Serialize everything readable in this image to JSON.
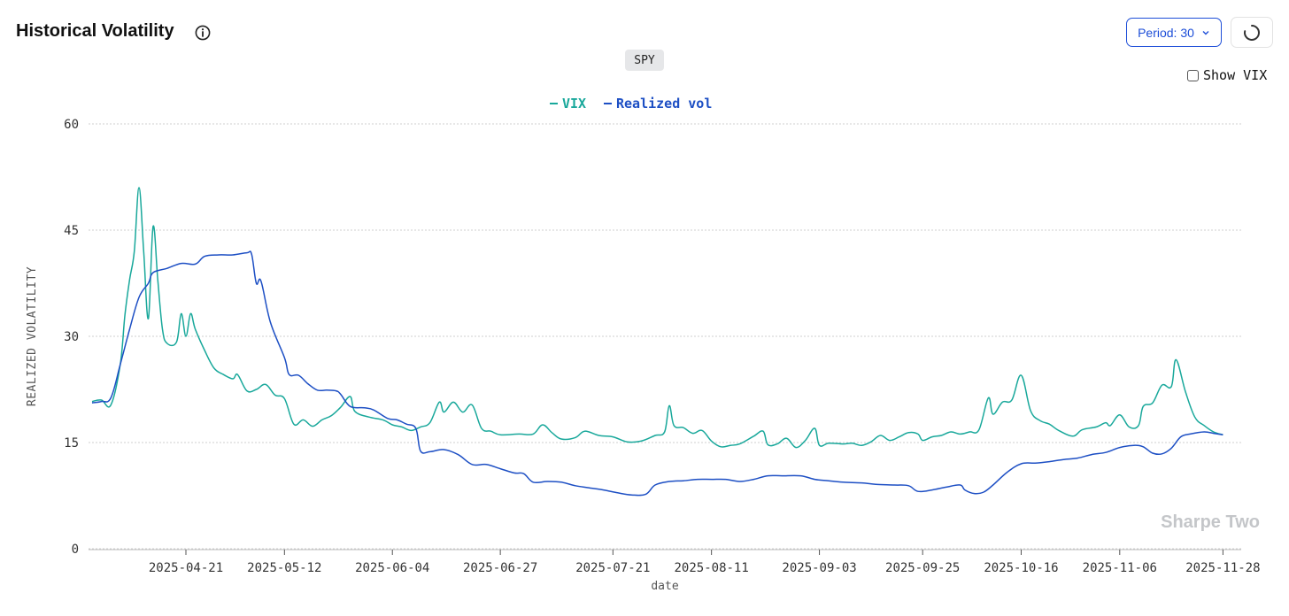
{
  "header": {
    "title": "Historical Volatility",
    "info_icon": "info-icon"
  },
  "controls": {
    "period_label": "Period: 30",
    "refresh_icon": "loading-spinner-icon",
    "show_vix_label": "Show VIX",
    "show_vix_checked": false
  },
  "ticker": "SPY",
  "watermark": "Sharpe Two",
  "colors": {
    "vix": "#19a89b",
    "realized": "#1d4fc4",
    "grid": "#cfcfcf",
    "axis_text": "#333333",
    "watermark": "#c4c6c9",
    "accent": "#1d4ed8"
  },
  "chart_data": {
    "type": "line",
    "title": "Historical Volatility",
    "xlabel": "date",
    "ylabel": "REALIZED VOLATILITY",
    "ylim": [
      0,
      60
    ],
    "yticks": [
      0,
      15,
      30,
      45,
      60
    ],
    "xlim": [
      "2025-04-01",
      "2025-11-30"
    ],
    "xticks": [
      "2025-04-21",
      "2025-05-12",
      "2025-06-04",
      "2025-06-27",
      "2025-07-21",
      "2025-08-11",
      "2025-09-03",
      "2025-09-25",
      "2025-10-16",
      "2025-11-06",
      "2025-11-28"
    ],
    "grid": "horizontal-dotted",
    "legend_position": "top-center",
    "series": [
      {
        "name": "VIX",
        "color": "#19a89b",
        "points": [
          [
            "2025-04-01",
            20.8
          ],
          [
            "2025-04-03",
            21.0
          ],
          [
            "2025-04-05",
            20.3
          ],
          [
            "2025-04-07",
            26
          ],
          [
            "2025-04-08",
            33
          ],
          [
            "2025-04-09",
            38
          ],
          [
            "2025-04-10",
            42
          ],
          [
            "2025-04-11",
            51
          ],
          [
            "2025-04-12",
            42
          ],
          [
            "2025-04-13",
            32.5
          ],
          [
            "2025-04-14",
            45.5
          ],
          [
            "2025-04-15",
            38
          ],
          [
            "2025-04-16",
            31
          ],
          [
            "2025-04-17",
            29
          ],
          [
            "2025-04-19",
            29.2
          ],
          [
            "2025-04-20",
            33.2
          ],
          [
            "2025-04-21",
            30
          ],
          [
            "2025-04-22",
            33.2
          ],
          [
            "2025-04-23",
            31
          ],
          [
            "2025-04-25",
            28
          ],
          [
            "2025-04-27",
            25.5
          ],
          [
            "2025-04-29",
            24.6
          ],
          [
            "2025-05-01",
            24.0
          ],
          [
            "2025-05-02",
            24.6
          ],
          [
            "2025-05-04",
            22.3
          ],
          [
            "2025-05-06",
            22.5
          ],
          [
            "2025-05-08",
            23.2
          ],
          [
            "2025-05-10",
            21.7
          ],
          [
            "2025-05-12",
            21.2
          ],
          [
            "2025-05-14",
            17.6
          ],
          [
            "2025-05-16",
            18.2
          ],
          [
            "2025-05-18",
            17.3
          ],
          [
            "2025-05-20",
            18.2
          ],
          [
            "2025-05-22",
            18.8
          ],
          [
            "2025-05-24",
            20.0
          ],
          [
            "2025-05-26",
            21.5
          ],
          [
            "2025-05-27",
            19.4
          ],
          [
            "2025-05-30",
            18.6
          ],
          [
            "2025-06-02",
            18.2
          ],
          [
            "2025-06-04",
            17.5
          ],
          [
            "2025-06-06",
            17.2
          ],
          [
            "2025-06-08",
            16.7
          ],
          [
            "2025-06-10",
            17.2
          ],
          [
            "2025-06-12",
            17.8
          ],
          [
            "2025-06-14",
            20.7
          ],
          [
            "2025-06-15",
            19.3
          ],
          [
            "2025-06-17",
            20.7
          ],
          [
            "2025-06-19",
            19.3
          ],
          [
            "2025-06-21",
            20.3
          ],
          [
            "2025-06-23",
            17.0
          ],
          [
            "2025-06-25",
            16.6
          ],
          [
            "2025-06-27",
            16.1
          ],
          [
            "2025-07-01",
            16.2
          ],
          [
            "2025-07-04",
            16.2
          ],
          [
            "2025-07-06",
            17.5
          ],
          [
            "2025-07-08",
            16.4
          ],
          [
            "2025-07-10",
            15.5
          ],
          [
            "2025-07-13",
            15.7
          ],
          [
            "2025-07-15",
            16.6
          ],
          [
            "2025-07-18",
            16.0
          ],
          [
            "2025-07-21",
            15.8
          ],
          [
            "2025-07-24",
            15.1
          ],
          [
            "2025-07-27",
            15.2
          ],
          [
            "2025-07-30",
            16.0
          ],
          [
            "2025-08-01",
            16.5
          ],
          [
            "2025-08-02",
            20.2
          ],
          [
            "2025-08-03",
            17.4
          ],
          [
            "2025-08-05",
            17.1
          ],
          [
            "2025-08-07",
            16.3
          ],
          [
            "2025-08-09",
            16.7
          ],
          [
            "2025-08-11",
            15.2
          ],
          [
            "2025-08-13",
            14.4
          ],
          [
            "2025-08-15",
            14.6
          ],
          [
            "2025-08-17",
            14.8
          ],
          [
            "2025-08-20",
            15.9
          ],
          [
            "2025-08-22",
            16.6
          ],
          [
            "2025-08-23",
            14.7
          ],
          [
            "2025-08-25",
            14.8
          ],
          [
            "2025-08-27",
            15.6
          ],
          [
            "2025-08-29",
            14.3
          ],
          [
            "2025-08-31",
            15.3
          ],
          [
            "2025-09-02",
            17.0
          ],
          [
            "2025-09-03",
            14.6
          ],
          [
            "2025-09-05",
            14.9
          ],
          [
            "2025-09-08",
            14.8
          ],
          [
            "2025-09-10",
            14.9
          ],
          [
            "2025-09-12",
            14.6
          ],
          [
            "2025-09-14",
            15.1
          ],
          [
            "2025-09-16",
            16.0
          ],
          [
            "2025-09-18",
            15.3
          ],
          [
            "2025-09-20",
            15.8
          ],
          [
            "2025-09-22",
            16.4
          ],
          [
            "2025-09-24",
            16.2
          ],
          [
            "2025-09-25",
            15.3
          ],
          [
            "2025-09-27",
            15.8
          ],
          [
            "2025-09-29",
            16.0
          ],
          [
            "2025-10-01",
            16.5
          ],
          [
            "2025-10-03",
            16.2
          ],
          [
            "2025-10-05",
            16.5
          ],
          [
            "2025-10-07",
            16.8
          ],
          [
            "2025-10-09",
            21.3
          ],
          [
            "2025-10-10",
            19.0
          ],
          [
            "2025-10-12",
            20.7
          ],
          [
            "2025-10-14",
            21.0
          ],
          [
            "2025-10-16",
            24.5
          ],
          [
            "2025-10-18",
            19.5
          ],
          [
            "2025-10-20",
            18.1
          ],
          [
            "2025-10-22",
            17.6
          ],
          [
            "2025-10-24",
            16.7
          ],
          [
            "2025-10-27",
            15.9
          ],
          [
            "2025-10-29",
            16.8
          ],
          [
            "2025-11-01",
            17.2
          ],
          [
            "2025-11-03",
            17.8
          ],
          [
            "2025-11-04",
            17.4
          ],
          [
            "2025-11-06",
            18.9
          ],
          [
            "2025-11-08",
            17.2
          ],
          [
            "2025-11-10",
            17.4
          ],
          [
            "2025-11-11",
            20.1
          ],
          [
            "2025-11-13",
            20.6
          ],
          [
            "2025-11-15",
            23.1
          ],
          [
            "2025-11-17",
            22.9
          ],
          [
            "2025-11-18",
            26.7
          ],
          [
            "2025-11-20",
            22.2
          ],
          [
            "2025-11-22",
            18.6
          ],
          [
            "2025-11-24",
            17.4
          ],
          [
            "2025-11-26",
            16.5
          ],
          [
            "2025-11-28",
            16.1
          ]
        ]
      },
      {
        "name": "Realized vol",
        "color": "#1d4fc4",
        "points": [
          [
            "2025-04-01",
            20.6
          ],
          [
            "2025-04-03",
            20.8
          ],
          [
            "2025-04-05",
            21.3
          ],
          [
            "2025-04-07",
            26.0
          ],
          [
            "2025-04-09",
            31.0
          ],
          [
            "2025-04-11",
            35.5
          ],
          [
            "2025-04-13",
            37.5
          ],
          [
            "2025-04-14",
            39.0
          ],
          [
            "2025-04-17",
            39.6
          ],
          [
            "2025-04-20",
            40.3
          ],
          [
            "2025-04-23",
            40.2
          ],
          [
            "2025-04-25",
            41.3
          ],
          [
            "2025-04-28",
            41.5
          ],
          [
            "2025-05-01",
            41.5
          ],
          [
            "2025-05-04",
            41.8
          ],
          [
            "2025-05-05",
            41.6
          ],
          [
            "2025-05-06",
            37.5
          ],
          [
            "2025-05-07",
            37.8
          ],
          [
            "2025-05-09",
            32.0
          ],
          [
            "2025-05-12",
            27.0
          ],
          [
            "2025-05-13",
            24.6
          ],
          [
            "2025-05-15",
            24.5
          ],
          [
            "2025-05-17",
            23.3
          ],
          [
            "2025-05-19",
            22.4
          ],
          [
            "2025-05-21",
            22.4
          ],
          [
            "2025-05-23",
            22.3
          ],
          [
            "2025-05-24",
            21.8
          ],
          [
            "2025-05-26",
            20.1
          ],
          [
            "2025-05-29",
            19.9
          ],
          [
            "2025-05-31",
            19.6
          ],
          [
            "2025-06-03",
            18.4
          ],
          [
            "2025-06-05",
            18.2
          ],
          [
            "2025-06-07",
            17.6
          ],
          [
            "2025-06-09",
            17.0
          ],
          [
            "2025-06-10",
            13.8
          ],
          [
            "2025-06-12",
            13.7
          ],
          [
            "2025-06-15",
            14.0
          ],
          [
            "2025-06-18",
            13.3
          ],
          [
            "2025-06-21",
            11.9
          ],
          [
            "2025-06-24",
            11.9
          ],
          [
            "2025-06-27",
            11.3
          ],
          [
            "2025-06-30",
            10.7
          ],
          [
            "2025-07-02",
            10.6
          ],
          [
            "2025-07-04",
            9.4
          ],
          [
            "2025-07-07",
            9.5
          ],
          [
            "2025-07-10",
            9.4
          ],
          [
            "2025-07-13",
            8.9
          ],
          [
            "2025-07-16",
            8.6
          ],
          [
            "2025-07-19",
            8.3
          ],
          [
            "2025-07-22",
            7.9
          ],
          [
            "2025-07-25",
            7.6
          ],
          [
            "2025-07-28",
            7.7
          ],
          [
            "2025-07-30",
            9.0
          ],
          [
            "2025-08-02",
            9.5
          ],
          [
            "2025-08-05",
            9.6
          ],
          [
            "2025-08-08",
            9.8
          ],
          [
            "2025-08-11",
            9.8
          ],
          [
            "2025-08-14",
            9.8
          ],
          [
            "2025-08-17",
            9.5
          ],
          [
            "2025-08-20",
            9.8
          ],
          [
            "2025-08-23",
            10.3
          ],
          [
            "2025-08-26",
            10.3
          ],
          [
            "2025-08-30",
            10.3
          ],
          [
            "2025-09-02",
            9.8
          ],
          [
            "2025-09-05",
            9.6
          ],
          [
            "2025-09-08",
            9.4
          ],
          [
            "2025-09-12",
            9.3
          ],
          [
            "2025-09-15",
            9.1
          ],
          [
            "2025-09-19",
            9.0
          ],
          [
            "2025-09-22",
            8.9
          ],
          [
            "2025-09-24",
            8.1
          ],
          [
            "2025-09-27",
            8.3
          ],
          [
            "2025-09-30",
            8.7
          ],
          [
            "2025-10-03",
            9.0
          ],
          [
            "2025-10-04",
            8.3
          ],
          [
            "2025-10-06",
            7.8
          ],
          [
            "2025-10-08",
            8.0
          ],
          [
            "2025-10-10",
            9.0
          ],
          [
            "2025-10-13",
            10.8
          ],
          [
            "2025-10-16",
            12.0
          ],
          [
            "2025-10-19",
            12.1
          ],
          [
            "2025-10-22",
            12.3
          ],
          [
            "2025-10-25",
            12.6
          ],
          [
            "2025-10-28",
            12.8
          ],
          [
            "2025-10-31",
            13.3
          ],
          [
            "2025-11-03",
            13.6
          ],
          [
            "2025-11-06",
            14.3
          ],
          [
            "2025-11-09",
            14.6
          ],
          [
            "2025-11-11",
            14.4
          ],
          [
            "2025-11-13",
            13.5
          ],
          [
            "2025-11-15",
            13.4
          ],
          [
            "2025-11-17",
            14.2
          ],
          [
            "2025-11-19",
            15.8
          ],
          [
            "2025-11-21",
            16.2
          ],
          [
            "2025-11-24",
            16.5
          ],
          [
            "2025-11-26",
            16.3
          ],
          [
            "2025-11-28",
            16.1
          ]
        ]
      }
    ]
  }
}
